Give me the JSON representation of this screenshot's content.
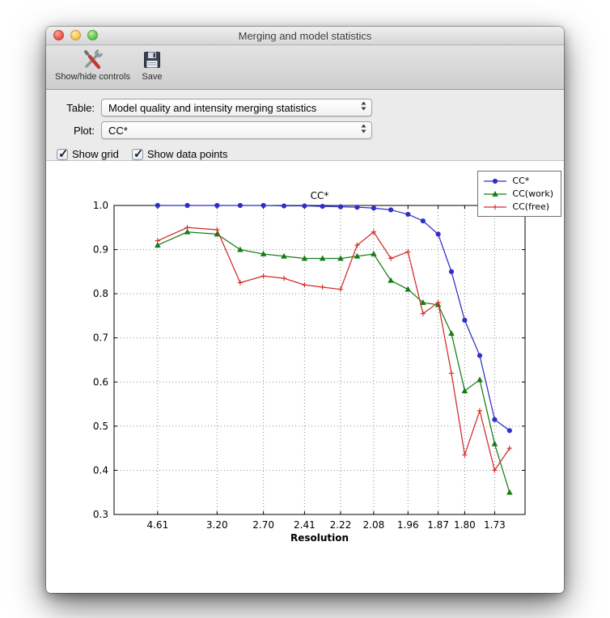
{
  "window": {
    "title": "Merging and model statistics"
  },
  "toolbar": {
    "buttons": [
      {
        "label": "Show/hide controls",
        "icon": "tools-icon"
      },
      {
        "label": "Save",
        "icon": "save-icon"
      }
    ]
  },
  "controls": {
    "table_label": "Table:",
    "table_value": "Model quality and intensity merging statistics",
    "plot_label": "Plot:",
    "plot_value": "CC*",
    "checkboxes": [
      {
        "label": "Show grid",
        "checked": true
      },
      {
        "label": "Show data points",
        "checked": true
      }
    ]
  },
  "chart_data": {
    "type": "line",
    "title": "CC*",
    "xlabel": "Resolution",
    "ylabel": "",
    "grid": true,
    "legend_position": "upper right",
    "ylim": [
      0.3,
      1.0
    ],
    "yticks": [
      0.3,
      0.4,
      0.5,
      0.6,
      0.7,
      0.8,
      0.9,
      1.0
    ],
    "x_axis_note": "resolution in angstroms plotted on 1/d^2 scale",
    "xlim_s2": [
      0.01,
      0.36
    ],
    "xticks": [
      {
        "label": "4.61",
        "s2": 0.0471
      },
      {
        "label": "3.20",
        "s2": 0.0977
      },
      {
        "label": "2.70",
        "s2": 0.1372
      },
      {
        "label": "2.41",
        "s2": 0.1722
      },
      {
        "label": "2.22",
        "s2": 0.2029
      },
      {
        "label": "2.08",
        "s2": 0.2311
      },
      {
        "label": "1.96",
        "s2": 0.2603
      },
      {
        "label": "1.87",
        "s2": 0.286
      },
      {
        "label": "1.80",
        "s2": 0.3086
      },
      {
        "label": "1.73",
        "s2": 0.3341
      }
    ],
    "x_s2": [
      0.0471,
      0.0724,
      0.0977,
      0.1174,
      0.1372,
      0.1547,
      0.1722,
      0.1875,
      0.2029,
      0.217,
      0.2311,
      0.2457,
      0.2603,
      0.2731,
      0.286,
      0.2973,
      0.3086,
      0.3214,
      0.3341,
      0.3468
    ],
    "series": [
      {
        "name": "CC*",
        "color": "#2e2ec9",
        "marker": "circle",
        "values": [
          1.0,
          1.0,
          1.0,
          1.0,
          1.0,
          0.999,
          0.999,
          0.998,
          0.997,
          0.996,
          0.994,
          0.99,
          0.98,
          0.965,
          0.935,
          0.85,
          0.74,
          0.66,
          0.515,
          0.49
        ]
      },
      {
        "name": "CC(work)",
        "color": "#157d15",
        "marker": "triangle",
        "values": [
          0.91,
          0.94,
          0.935,
          0.9,
          0.89,
          0.885,
          0.88,
          0.88,
          0.88,
          0.885,
          0.89,
          0.83,
          0.81,
          0.78,
          0.775,
          0.71,
          0.58,
          0.605,
          0.46,
          0.35
        ]
      },
      {
        "name": "CC(free)",
        "color": "#d22a2a",
        "marker": "plus",
        "values": [
          0.92,
          0.95,
          0.945,
          0.825,
          0.84,
          0.835,
          0.82,
          0.815,
          0.81,
          0.91,
          0.94,
          0.88,
          0.895,
          0.755,
          0.78,
          0.62,
          0.435,
          0.535,
          0.4,
          0.45
        ]
      }
    ]
  }
}
